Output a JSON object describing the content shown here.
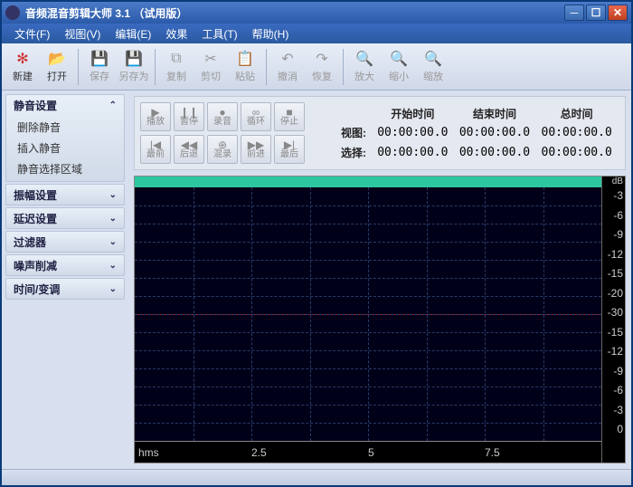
{
  "title": "音频混音剪辑大师 3.1 （试用版）",
  "menus": [
    "文件(F)",
    "视图(V)",
    "编辑(E)",
    "效果",
    "工具(T)",
    "帮助(H)"
  ],
  "toolbar": {
    "new": "新建",
    "open": "打开",
    "save": "保存",
    "saveas": "另存为",
    "copy": "复制",
    "cut": "剪切",
    "paste": "粘贴",
    "undo": "撤消",
    "redo": "恢复",
    "zoomin": "放大",
    "zoomout": "缩小",
    "zoomsel": "缩放"
  },
  "panels": {
    "p1": {
      "title": "静音设置",
      "items": [
        "删除静音",
        "插入静音",
        "静音选择区域"
      ]
    },
    "p2": {
      "title": "振幅设置"
    },
    "p3": {
      "title": "延迟设置"
    },
    "p4": {
      "title": "过滤器"
    },
    "p5": {
      "title": "噪声削减"
    },
    "p6": {
      "title": "时间/变调"
    }
  },
  "transport": {
    "r1": {
      "play": "播放",
      "pause": "暂停",
      "rec": "录音",
      "loop": "循环",
      "stop": "停止"
    },
    "r2": {
      "first": "最前",
      "back": "后退",
      "mix": "混录",
      "fwd": "前进",
      "last": "最后"
    }
  },
  "time": {
    "h1": "开始时间",
    "h2": "结束时间",
    "h3": "总时间",
    "view": "视图:",
    "sel": "选择:",
    "v1": "00:00:00.0",
    "v2": "00:00:00.0",
    "v3": "00:00:00.0",
    "s1": "00:00:00.0",
    "s2": "00:00:00.0",
    "s3": "00:00:00.0"
  },
  "waveform": {
    "unit": "hms",
    "xticks": [
      "2.5",
      "5",
      "7.5"
    ],
    "db_label": "dB",
    "db_ticks": [
      "-3",
      "-6",
      "-9",
      "-12",
      "-15",
      "-20",
      "-30",
      "-15",
      "-12",
      "-9",
      "-6",
      "-3",
      "0"
    ],
    "colors": {
      "bg": "#000018",
      "grid": "#2a3a6a",
      "center": "#a02020",
      "topbar": "#2ec8a0"
    }
  }
}
